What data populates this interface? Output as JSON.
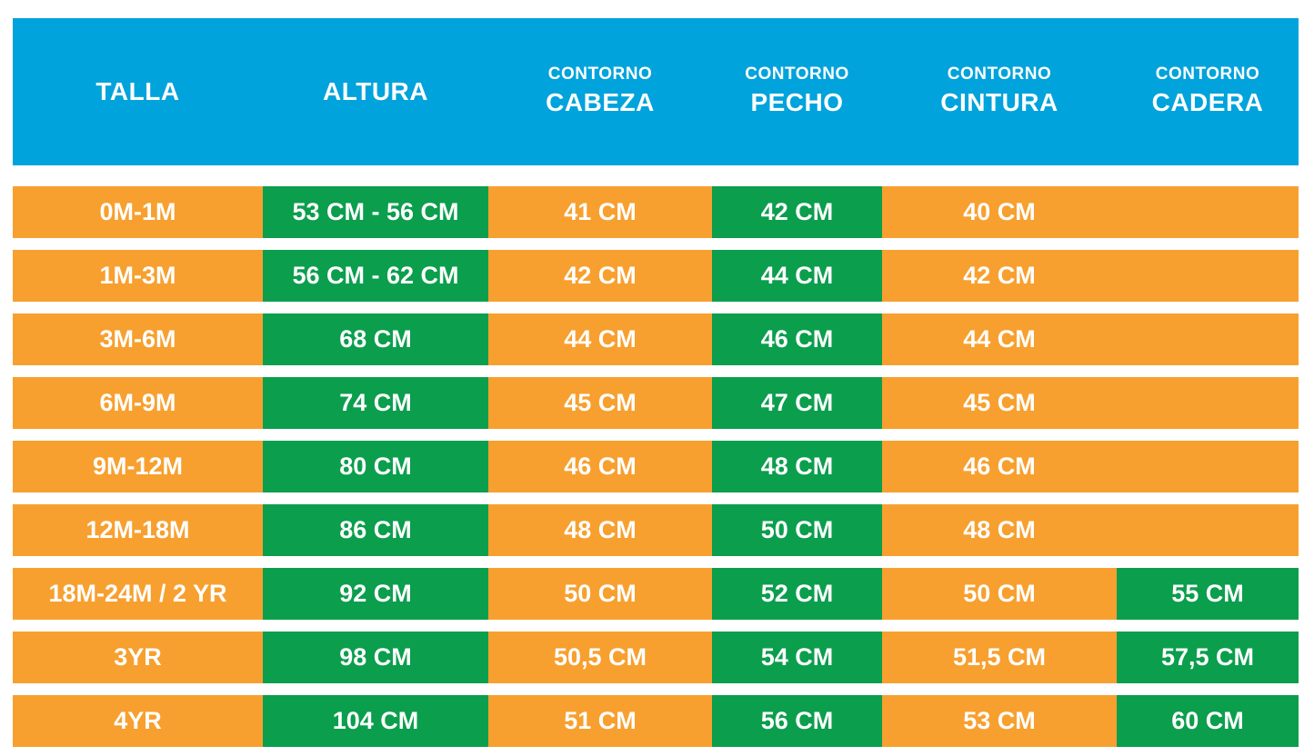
{
  "colors": {
    "header_bg": "#00A3DC",
    "orange": "#F7A02F",
    "green": "#0B9E4D",
    "text": "#FFFFFF"
  },
  "header": {
    "talla": {
      "main": "TALLA"
    },
    "altura": {
      "main": "ALTURA"
    },
    "cabeza": {
      "top": "CONTORNO",
      "main": "CABEZA"
    },
    "pecho": {
      "top": "CONTORNO",
      "main": "PECHO"
    },
    "cintura": {
      "top": "CONTORNO",
      "main": "CINTURA"
    },
    "cadera": {
      "top": "CONTORNO",
      "main": "CADERA"
    }
  },
  "chart_data": {
    "type": "table",
    "title": "Tabla de tallas infantil",
    "columns": [
      "TALLA",
      "ALTURA",
      "CONTORNO CABEZA",
      "CONTORNO PECHO",
      "CONTORNO CINTURA",
      "CONTORNO CADERA"
    ],
    "rows": [
      [
        "0M-1M",
        "53 CM - 56 CM",
        "41 CM",
        "42 CM",
        "40 CM",
        ""
      ],
      [
        "1M-3M",
        "56 CM - 62 CM",
        "42 CM",
        "44 CM",
        "42 CM",
        ""
      ],
      [
        "3M-6M",
        "68 CM",
        "44 CM",
        "46 CM",
        "44 CM",
        ""
      ],
      [
        "6M-9M",
        "74 CM",
        "45 CM",
        "47 CM",
        "45 CM",
        ""
      ],
      [
        "9M-12M",
        "80 CM",
        "46 CM",
        "48 CM",
        "46 CM",
        ""
      ],
      [
        "12M-18M",
        "86 CM",
        "48 CM",
        "50 CM",
        "48 CM",
        ""
      ],
      [
        "18M-24M / 2 YR",
        "92 CM",
        "50 CM",
        "52 CM",
        "50 CM",
        "55 CM"
      ],
      [
        "3YR",
        "98 CM",
        "50,5 CM",
        "54 CM",
        "51,5 CM",
        "57,5 CM"
      ],
      [
        "4YR",
        "104 CM",
        "51 CM",
        "56 CM",
        "53 CM",
        "60 CM"
      ]
    ],
    "cell_color_pattern": {
      "talla": "orange",
      "altura": "green",
      "cabeza": "orange",
      "pecho": "green",
      "cintura": "orange",
      "cadera_rows_1_to_6": "orange",
      "cadera_rows_7_to_9": "green"
    },
    "layout_hints": {
      "header_bg": "blue",
      "grid": "off",
      "row_gap": "white"
    }
  }
}
